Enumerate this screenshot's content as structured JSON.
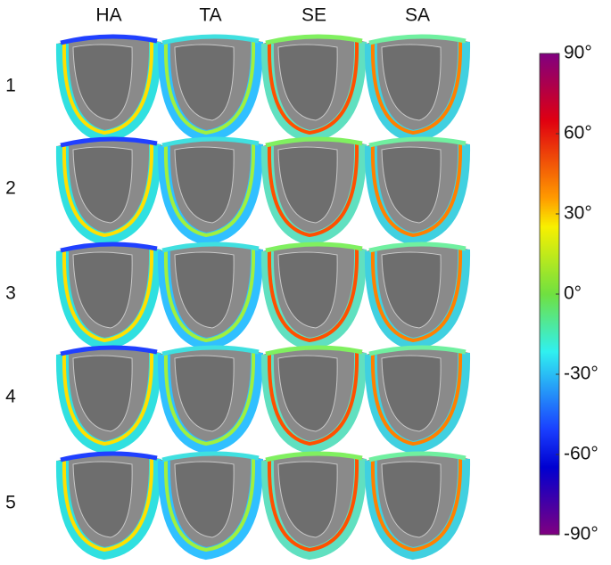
{
  "columns": [
    "HA",
    "TA",
    "SE",
    "SA"
  ],
  "rows": [
    "1",
    "2",
    "3",
    "4",
    "5"
  ],
  "colorbar": {
    "lim": [
      -90,
      90
    ],
    "ticks": [
      {
        "value": 90,
        "label": "90°"
      },
      {
        "value": 60,
        "label": "60°"
      },
      {
        "value": 30,
        "label": "30°"
      },
      {
        "value": 0,
        "label": "0°"
      },
      {
        "value": -30,
        "label": "-30°"
      },
      {
        "value": -60,
        "label": "-60°"
      },
      {
        "value": -90,
        "label": "-90°"
      }
    ]
  }
}
